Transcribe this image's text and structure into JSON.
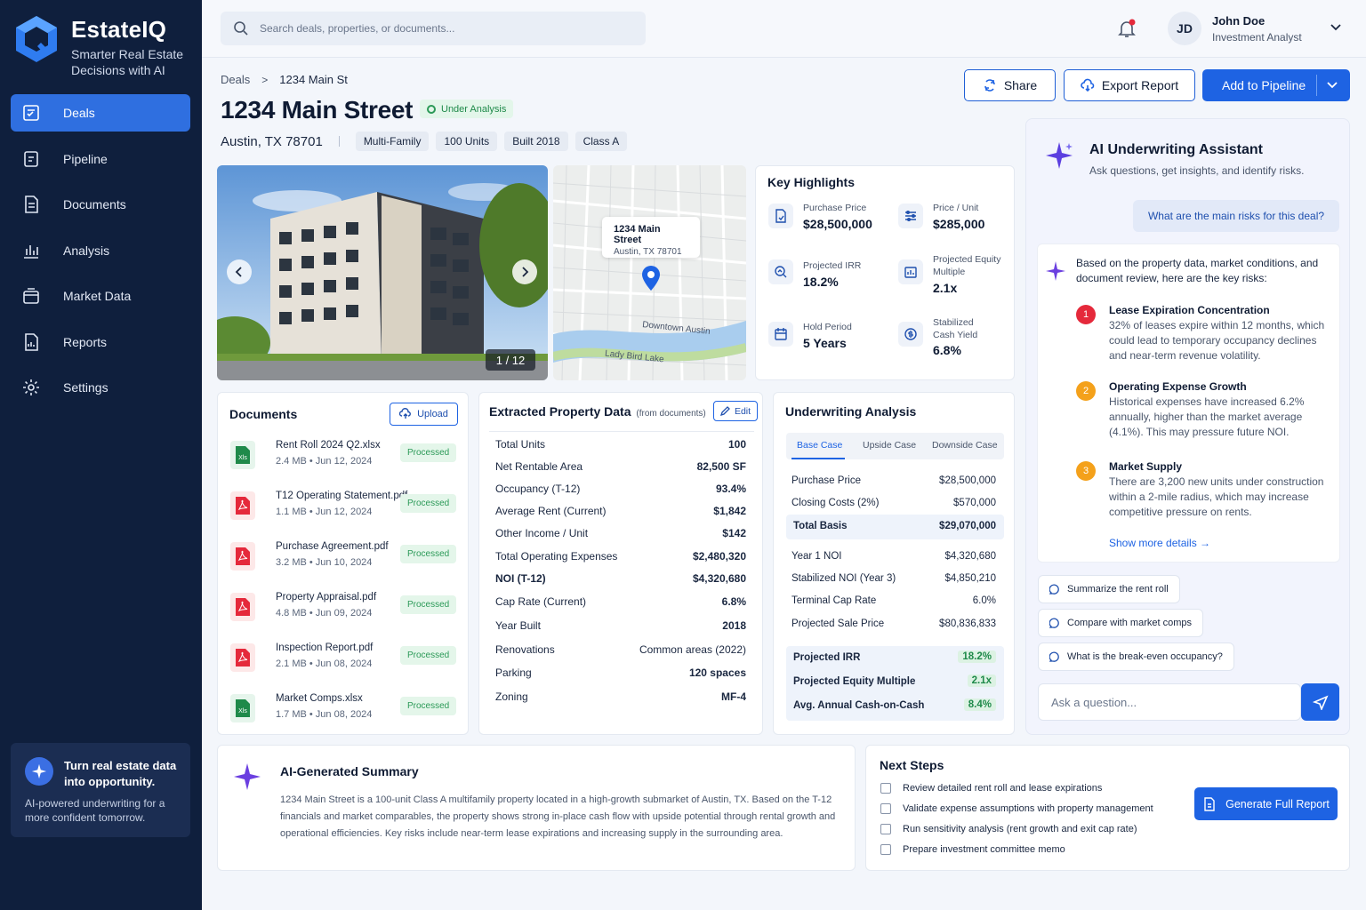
{
  "brand": {
    "name": "EstateIQ",
    "tagline_1": "Smarter Real Estate",
    "tagline_2": "Decisions with AI"
  },
  "sidebar": {
    "items": [
      {
        "label": "Deals",
        "icon": "deals-icon",
        "active": true
      },
      {
        "label": "Pipeline",
        "icon": "pipeline-icon"
      },
      {
        "label": "Documents",
        "icon": "documents-icon"
      },
      {
        "label": "Analysis",
        "icon": "analysis-icon"
      },
      {
        "label": "Market Data",
        "icon": "market-data-icon"
      },
      {
        "label": "Reports",
        "icon": "reports-icon"
      },
      {
        "label": "Settings",
        "icon": "settings-icon"
      }
    ],
    "promo": {
      "title": "Turn real estate data into opportunity.",
      "subtitle": "AI-powered underwriting for a more confident tomorrow."
    }
  },
  "topbar": {
    "search_placeholder": "Search deals, properties, or documents...",
    "user": {
      "initials": "JD",
      "name": "John Doe",
      "role": "Investment Analyst"
    }
  },
  "breadcrumb": {
    "root": "Deals",
    "current": "1234 Main St"
  },
  "property": {
    "title": "1234 Main Street",
    "status": "Under Analysis",
    "location": "Austin, TX 78701",
    "chips": [
      "Multi-Family",
      "100 Units",
      "Built 2018",
      "Class A"
    ]
  },
  "actions": {
    "share": "Share",
    "export": "Export Report",
    "add": "Add to Pipeline"
  },
  "gallery": {
    "counter": "1 / 12"
  },
  "map": {
    "pin_title": "1234 Main Street",
    "pin_sub": "Austin, TX 78701",
    "label_downtown": "Downtown Austin",
    "label_lake": "Lady Bird Lake"
  },
  "highlights": {
    "title": "Key Highlights",
    "items": [
      {
        "label": "Purchase Price",
        "value": "$28,500,000"
      },
      {
        "label": "Price / Unit",
        "value": "$285,000"
      },
      {
        "label": "Projected IRR",
        "value": "18.2%"
      },
      {
        "label_1": "Projected Equity",
        "label_2": "Multiple",
        "value": "2.1x"
      },
      {
        "label": "Hold Period",
        "value": "5 Years"
      },
      {
        "label_1": "Stabilized",
        "label_2": "Cash Yield",
        "value": "6.8%"
      }
    ]
  },
  "documents": {
    "title": "Documents",
    "upload": "Upload",
    "items": [
      {
        "name": "Rent Roll 2024 Q2.xlsx",
        "meta": "2.4 MB • Jun 12, 2024",
        "status": "Processed",
        "type": "xls"
      },
      {
        "name": "T12 Operating Statement.pdf",
        "meta": "1.1 MB • Jun 12, 2024",
        "status": "Processed",
        "type": "pdf"
      },
      {
        "name": "Purchase Agreement.pdf",
        "meta": "3.2 MB • Jun 10, 2024",
        "status": "Processed",
        "type": "pdf"
      },
      {
        "name": "Property Appraisal.pdf",
        "meta": "4.8 MB • Jun 09, 2024",
        "status": "Processed",
        "type": "pdf"
      },
      {
        "name": "Inspection Report.pdf",
        "meta": "2.1 MB • Jun 08, 2024",
        "status": "Processed",
        "type": "pdf"
      },
      {
        "name": "Market Comps.xlsx",
        "meta": "1.7 MB • Jun 08, 2024",
        "status": "Processed",
        "type": "xls"
      }
    ]
  },
  "extracted": {
    "title": "Extracted Property Data",
    "subtitle": "(from documents)",
    "edit": "Edit",
    "rows": [
      {
        "k": "Total Units",
        "v": "100"
      },
      {
        "k": "Net Rentable Area",
        "v": "82,500 SF"
      },
      {
        "k": "Occupancy (T-12)",
        "v": "93.4%"
      },
      {
        "k": "Average Rent (Current)",
        "v": "$1,842"
      },
      {
        "k": "Other Income / Unit",
        "v": "$142"
      },
      {
        "k": "Total Operating Expenses",
        "v": "$2,480,320"
      },
      {
        "k": "NOI (T-12)",
        "v": "$4,320,680"
      },
      {
        "k": "Cap Rate (Current)",
        "v": "6.8%"
      },
      {
        "k": "Year Built",
        "v": "2018"
      },
      {
        "k": "Renovations",
        "v": "Common areas (2022)"
      },
      {
        "k": "Parking",
        "v": "120 spaces"
      },
      {
        "k": "Zoning",
        "v": "MF-4"
      }
    ]
  },
  "underwriting": {
    "title": "Underwriting Analysis",
    "tabs": [
      "Base Case",
      "Upside Case",
      "Downside Case"
    ],
    "rows": [
      {
        "k": "Purchase Price",
        "v": "$28,500,000"
      },
      {
        "k": "Closing Costs (2%)",
        "v": "$570,000"
      },
      {
        "k": "Total Basis",
        "v": "$29,070,000"
      },
      {
        "k": "Year 1 NOI",
        "v": "$4,320,680"
      },
      {
        "k": "Stabilized NOI (Year 3)",
        "v": "$4,850,210"
      },
      {
        "k": "Terminal Cap Rate",
        "v": "6.0%"
      },
      {
        "k": "Projected Sale Price",
        "v": "$80,836,833"
      }
    ],
    "returns": [
      {
        "k": "Projected IRR",
        "v": "18.2%"
      },
      {
        "k": "Projected Equity Multiple",
        "v": "2.1x"
      },
      {
        "k": "Avg. Annual Cash-on-Cash",
        "v": "8.4%"
      }
    ]
  },
  "assistant": {
    "title": "AI Underwriting Assistant",
    "subtitle": "Ask questions, get insights, and identify risks.",
    "question": "What are the main risks for this deal?",
    "intro": "Based on the property data, market conditions, and document review, here are the key risks:",
    "risks": [
      {
        "num": "1",
        "title": "Lease Expiration Concentration",
        "body": "32% of leases expire within 12 months, which could lead to temporary occupancy declines and near-term revenue volatility.",
        "color": "#e5293b"
      },
      {
        "num": "2",
        "title": "Operating Expense Growth",
        "body": "Historical expenses have increased 6.2% annually, higher than the market average (4.1%). This may pressure future NOI.",
        "color": "#f4a11b"
      },
      {
        "num": "3",
        "title": "Market Supply",
        "body": "There are 3,200 new units under construction within a 2-mile radius, which may increase competitive pressure on rents.",
        "color": "#f4a11b"
      }
    ],
    "show_more": "Show more details →",
    "suggestions": [
      "Summarize the rent roll",
      "Compare with market comps",
      "What is the break-even occupancy?"
    ],
    "input_placeholder": "Ask a question..."
  },
  "summary": {
    "title": "AI-Generated Summary",
    "body": "1234 Main Street is a 100-unit Class A multifamily property located in a high-growth submarket of Austin, TX. Based on the T-12 financials and market comparables, the property shows strong in-place cash flow with upside potential through rental growth and operational efficiencies. Key risks include near-term lease expirations and increasing supply in the surrounding area."
  },
  "next_steps": {
    "title": "Next Steps",
    "items": [
      "Review detailed rent roll and lease expirations",
      "Validate expense assumptions with property management",
      "Run sensitivity analysis (rent growth and exit cap rate)",
      "Prepare investment committee memo"
    ],
    "button": "Generate Full Report"
  },
  "colors": {
    "primary": "#1e63e3",
    "sidebar": "#0f1f3d",
    "success": "#2c9a58",
    "accent_purple": "#6b3fe0"
  }
}
